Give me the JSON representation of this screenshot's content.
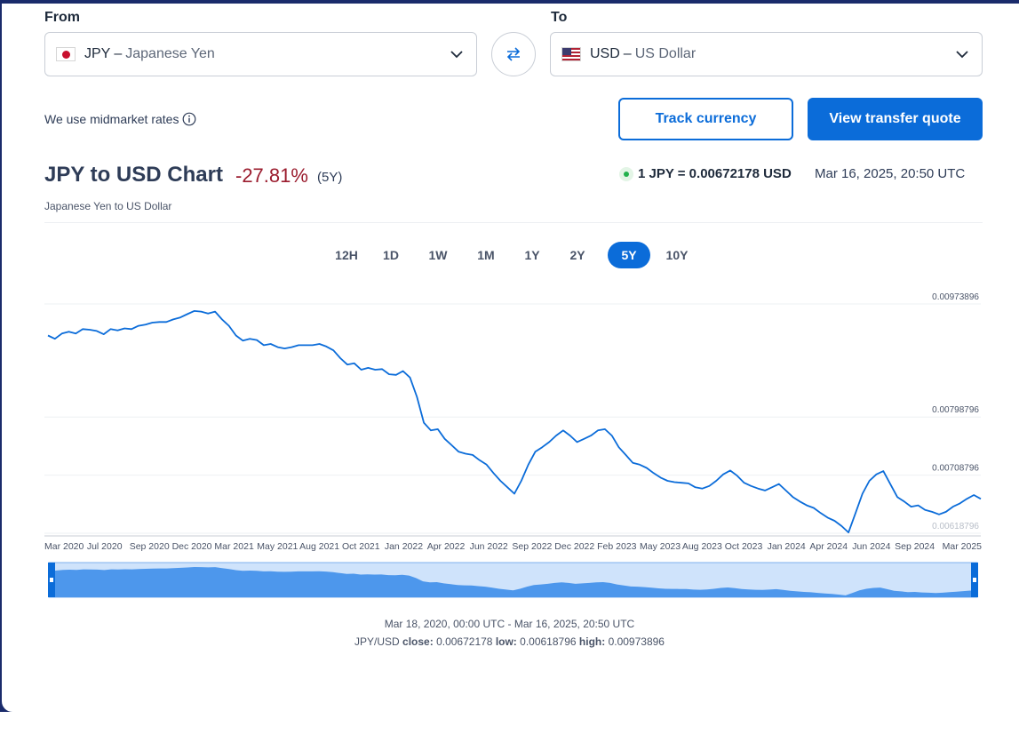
{
  "converter": {
    "from_label": "From",
    "to_label": "To",
    "from": {
      "code": "JPY",
      "dash": "–",
      "name": "Japanese Yen",
      "flag": "flag-japan-icon"
    },
    "to": {
      "code": "USD",
      "dash": "–",
      "name": "US Dollar",
      "flag": "flag-usa-icon"
    },
    "swap_icon": "swap-arrows-icon"
  },
  "midmarket_text": "We use midmarket rates",
  "buttons": {
    "track": "Track currency",
    "quote": "View transfer quote"
  },
  "header": {
    "title": "JPY to USD Chart",
    "change": "-27.81%",
    "period": "(5Y)",
    "subtitle": "Japanese Yen to US Dollar",
    "rate": "1 JPY = 0.00672178 USD",
    "timestamp": "Mar 16, 2025, 20:50 UTC"
  },
  "ranges": [
    "12H",
    "1D",
    "1W",
    "1M",
    "1Y",
    "2Y",
    "5Y",
    "10Y"
  ],
  "active_range": "5Y",
  "colors": {
    "accent": "#0b6cd9",
    "negative": "#9b1c2e",
    "line": "#0b6cd9",
    "live": "#22b14c"
  },
  "chart_data": {
    "type": "line",
    "series": [
      {
        "values": [
          0.00925,
          0.0092,
          0.00928,
          0.00931,
          0.00928,
          0.00935,
          0.00934,
          0.00932,
          0.00927,
          0.00935,
          0.00933,
          0.00936,
          0.00935,
          0.0094,
          0.00942,
          0.00945,
          0.00946,
          0.00946,
          0.0095,
          0.00953,
          0.00958,
          0.00963,
          0.00962,
          0.00959,
          0.00962,
          0.0095,
          0.0094,
          0.00925,
          0.00917,
          0.0092,
          0.00918,
          0.0091,
          0.00912,
          0.00907,
          0.00905,
          0.00907,
          0.0091,
          0.0091,
          0.0091,
          0.00912,
          0.00908,
          0.00902,
          0.0089,
          0.0088,
          0.00882,
          0.00872,
          0.00875,
          0.00872,
          0.00873,
          0.00865,
          0.00864,
          0.0087,
          0.0086,
          0.0083,
          0.0079,
          0.00778,
          0.0078,
          0.00765,
          0.00755,
          0.00745,
          0.00742,
          0.0074,
          0.00732,
          0.00725,
          0.00712,
          0.007,
          0.0069,
          0.0068,
          0.007,
          0.00725,
          0.00745,
          0.00752,
          0.0076,
          0.0077,
          0.00778,
          0.0077,
          0.0076,
          0.00765,
          0.0077,
          0.00778,
          0.0078,
          0.0077,
          0.00752,
          0.0074,
          0.00728,
          0.00725,
          0.0072,
          0.00712,
          0.00705,
          0.007,
          0.00698,
          0.00697,
          0.00696,
          0.0069,
          0.00688,
          0.00692,
          0.007,
          0.0071,
          0.00716,
          0.00708,
          0.00697,
          0.00692,
          0.00688,
          0.00685,
          0.0069,
          0.00695,
          0.00685,
          0.00675,
          0.00668,
          0.00662,
          0.00658,
          0.0065,
          0.00643,
          0.00638,
          0.0063,
          0.0062,
          0.0065,
          0.0068,
          0.007,
          0.0071,
          0.00715,
          0.00695,
          0.00675,
          0.00668,
          0.0066,
          0.00662,
          0.00655,
          0.00652,
          0.00648,
          0.00652,
          0.0066,
          0.00665,
          0.00672,
          0.00678,
          0.00672
        ]
      }
    ],
    "x_ticks": [
      "Mar 2020",
      "Jul 2020",
      "Sep 2020",
      "Dec 2020",
      "Mar 2021",
      "May 2021",
      "Aug 2021",
      "Oct 2021",
      "Jan 2022",
      "Apr 2022",
      "Jun 2022",
      "Sep 2022",
      "Dec 2022",
      "Feb 2023",
      "May 2023",
      "Aug 2023",
      "Oct 2023",
      "Jan 2024",
      "Apr 2024",
      "Jun 2024",
      "Sep 2024",
      "Mar 2025"
    ],
    "y_ticks": [
      "0.00973896",
      "0.00798796",
      "0.00708796",
      "0.00618796"
    ],
    "ylim": [
      0.00618796,
      0.00973896
    ],
    "legend": "none",
    "grid": "horizontal"
  },
  "footer": {
    "range": "Mar 18, 2020, 00:00 UTC - Mar 16, 2025, 20:50 UTC",
    "pair": "JPY/USD",
    "close_label": "close:",
    "close": "0.00672178",
    "low_label": "low:",
    "low": "0.00618796",
    "high_label": "high:",
    "high": "0.00973896"
  }
}
